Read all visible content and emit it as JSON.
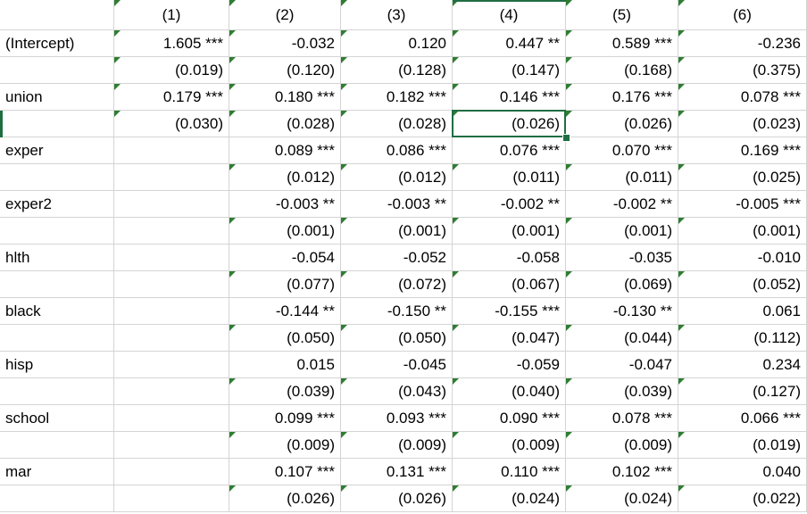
{
  "colors": {
    "accent": "#1f6e43",
    "gridline": "#d4d4d4",
    "indicator": "#2e7d32"
  },
  "sheet": {
    "selected_cell": {
      "row": 3,
      "col": 4
    },
    "headers": [
      "",
      "(1)",
      "(2)",
      "(3)",
      "(4)",
      "(5)",
      "(6)"
    ],
    "rows": [
      [
        "(Intercept)",
        "1.605 ***",
        "-0.032",
        "0.120",
        "0.447 **",
        "0.589 ***",
        "-0.236"
      ],
      [
        "",
        "(0.019)",
        "(0.120)",
        "(0.128)",
        "(0.147)",
        "(0.168)",
        "(0.375)"
      ],
      [
        "union",
        "0.179 ***",
        "0.180 ***",
        "0.182 ***",
        "0.146 ***",
        "0.176 ***",
        "0.078 ***"
      ],
      [
        "",
        "(0.030)",
        "(0.028)",
        "(0.028)",
        "(0.026)",
        "(0.026)",
        "(0.023)"
      ],
      [
        "exper",
        "",
        "0.089 ***",
        "0.086 ***",
        "0.076 ***",
        "0.070 ***",
        "0.169 ***"
      ],
      [
        "",
        "",
        "(0.012)",
        "(0.012)",
        "(0.011)",
        "(0.011)",
        "(0.025)"
      ],
      [
        "exper2",
        "",
        "-0.003 **",
        "-0.003 **",
        "-0.002 **",
        "-0.002 **",
        "-0.005 ***"
      ],
      [
        "",
        "",
        "(0.001)",
        "(0.001)",
        "(0.001)",
        "(0.001)",
        "(0.001)"
      ],
      [
        "hlth",
        "",
        "-0.054",
        "-0.052",
        "-0.058",
        "-0.035",
        "-0.010"
      ],
      [
        "",
        "",
        "(0.077)",
        "(0.072)",
        "(0.067)",
        "(0.069)",
        "(0.052)"
      ],
      [
        "black",
        "",
        "-0.144 **",
        "-0.150 **",
        "-0.155 ***",
        "-0.130 **",
        "0.061"
      ],
      [
        "",
        "",
        "(0.050)",
        "(0.050)",
        "(0.047)",
        "(0.044)",
        "(0.112)"
      ],
      [
        "hisp",
        "",
        "0.015",
        "-0.045",
        "-0.059",
        "-0.047",
        "0.234"
      ],
      [
        "",
        "",
        "(0.039)",
        "(0.043)",
        "(0.040)",
        "(0.039)",
        "(0.127)"
      ],
      [
        "school",
        "",
        "0.099 ***",
        "0.093 ***",
        "0.090 ***",
        "0.078 ***",
        "0.066 ***"
      ],
      [
        "",
        "",
        "(0.009)",
        "(0.009)",
        "(0.009)",
        "(0.009)",
        "(0.019)"
      ],
      [
        "mar",
        "",
        "0.107 ***",
        "0.131 ***",
        "0.110 ***",
        "0.102 ***",
        "0.040"
      ],
      [
        "",
        "",
        "(0.026)",
        "(0.026)",
        "(0.024)",
        "(0.024)",
        "(0.022)"
      ]
    ]
  }
}
